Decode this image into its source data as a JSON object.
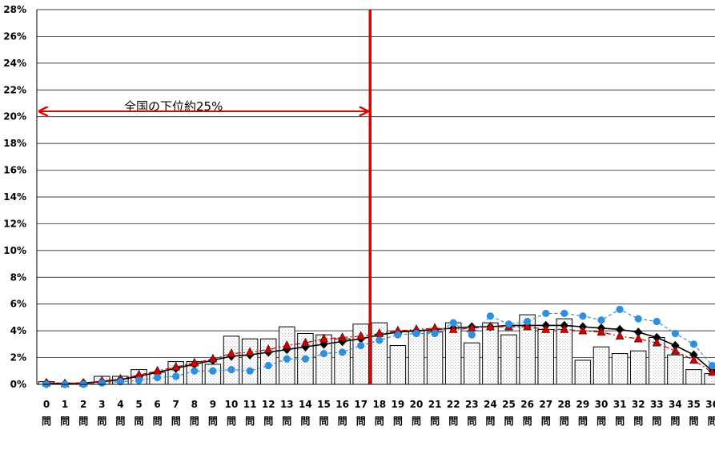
{
  "chart_data": {
    "type": "bar",
    "categories": [
      "0",
      "1",
      "2",
      "3",
      "4",
      "5",
      "6",
      "7",
      "8",
      "9",
      "10",
      "11",
      "12",
      "13",
      "14",
      "15",
      "16",
      "17",
      "18",
      "19",
      "20",
      "21",
      "22",
      "23",
      "24",
      "25",
      "26",
      "27",
      "28",
      "29",
      "30",
      "31",
      "32",
      "33",
      "34",
      "35",
      "36"
    ],
    "category_suffix": "問",
    "ylim": [
      0,
      28
    ],
    "yticks": [
      "0%",
      "2%",
      "4%",
      "6%",
      "8%",
      "10%",
      "12%",
      "14%",
      "16%",
      "18%",
      "20%",
      "22%",
      "24%",
      "26%",
      "28%"
    ],
    "grid": true,
    "series": [
      {
        "kind": "bar",
        "values": [
          0.2,
          0.1,
          0.1,
          0.6,
          0.6,
          1.1,
          0.9,
          1.7,
          1.7,
          1.5,
          3.6,
          3.4,
          3.4,
          4.3,
          3.8,
          3.7,
          3.4,
          4.5,
          4.6,
          2.9,
          4.0,
          3.9,
          4.6,
          3.1,
          4.6,
          3.7,
          5.2,
          4.1,
          4.9,
          1.8,
          2.8,
          2.3,
          2.5,
          3.5,
          2.2,
          1.1,
          0.8
        ]
      },
      {
        "kind": "line",
        "marker": "diamond",
        "color": "#000000",
        "values": [
          0.1,
          0.05,
          0.1,
          0.2,
          0.35,
          0.6,
          0.9,
          1.2,
          1.5,
          1.8,
          2.1,
          2.2,
          2.4,
          2.6,
          2.8,
          3.0,
          3.2,
          3.4,
          3.7,
          3.9,
          4.0,
          4.1,
          4.2,
          4.3,
          4.3,
          4.4,
          4.4,
          4.4,
          4.4,
          4.3,
          4.2,
          4.1,
          3.9,
          3.5,
          2.9,
          2.2,
          1.0
        ]
      },
      {
        "kind": "line",
        "marker": "triangle",
        "color": "#cc0000",
        "values": [
          0.1,
          0.05,
          0.1,
          0.25,
          0.4,
          0.7,
          1.0,
          1.3,
          1.6,
          1.9,
          2.3,
          2.4,
          2.6,
          2.9,
          3.1,
          3.4,
          3.5,
          3.6,
          3.8,
          4.0,
          4.1,
          4.2,
          4.1,
          4.2,
          4.3,
          4.3,
          4.3,
          4.1,
          4.1,
          4.0,
          3.9,
          3.6,
          3.4,
          3.1,
          2.5,
          1.8,
          0.9
        ]
      },
      {
        "kind": "line",
        "marker": "circle",
        "color": "#2f8fdf",
        "values": [
          0.0,
          0.0,
          0.0,
          0.1,
          0.2,
          0.3,
          0.5,
          0.6,
          1.0,
          1.0,
          1.1,
          1.0,
          1.4,
          1.9,
          1.9,
          2.3,
          2.4,
          2.9,
          3.3,
          3.7,
          3.8,
          3.8,
          4.6,
          3.7,
          5.1,
          4.5,
          4.7,
          5.3,
          5.3,
          5.1,
          4.8,
          5.6,
          4.9,
          4.7,
          3.8,
          3.0,
          1.4
        ]
      }
    ],
    "threshold_category": "17",
    "annotations": [
      {
        "text": "全国の下位約25%"
      }
    ]
  }
}
